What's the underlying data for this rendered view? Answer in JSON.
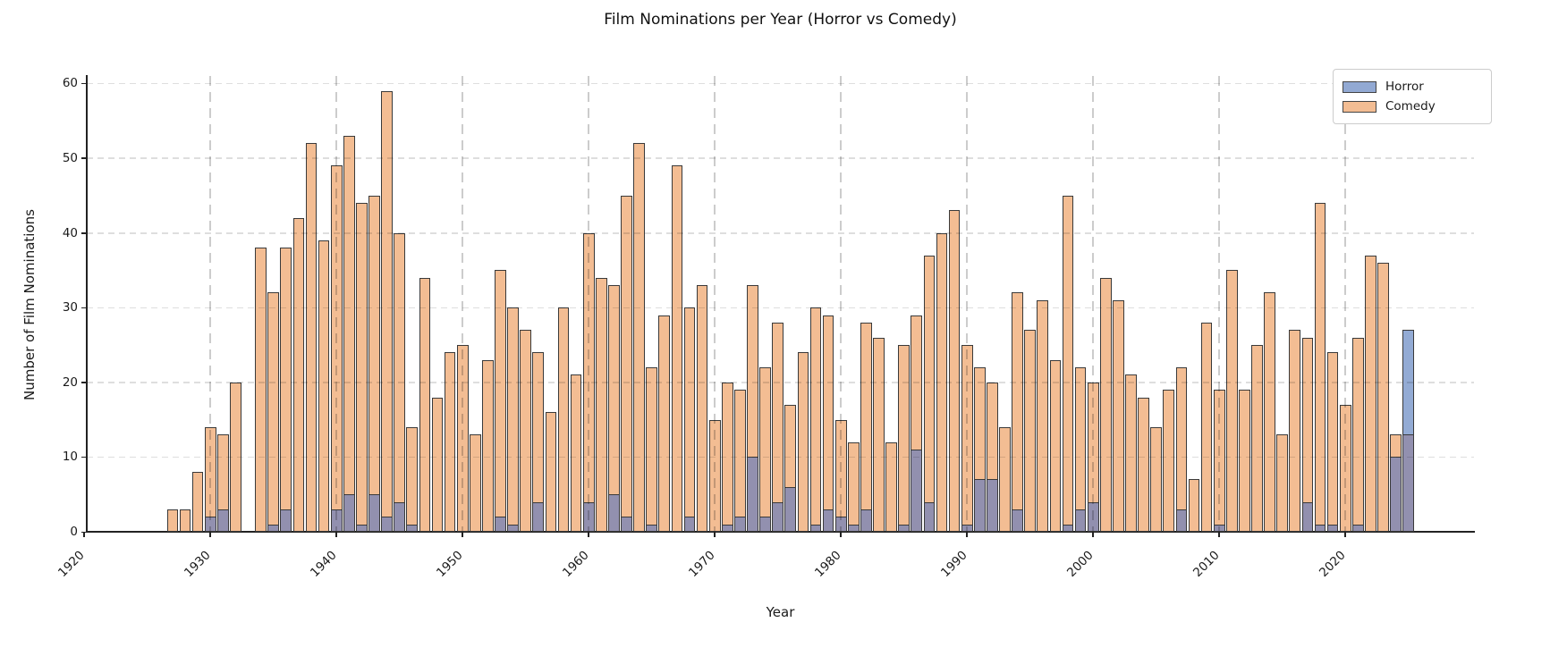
{
  "title": "Film Nominations per Year (Horror vs Comedy)",
  "legend": [
    {
      "label": "Horror",
      "color": "#92a9d3"
    },
    {
      "label": "Comedy",
      "color": "#f3bd93"
    }
  ],
  "colors": {
    "comedy": "#f3bd93",
    "horror_solo": "#93abd4",
    "horror_overlap": "#9290af",
    "edge": "#3a3a3a"
  },
  "chart_data": {
    "type": "bar",
    "title": "Film Nominations per Year (Horror vs Comedy)",
    "xlabel": "Year",
    "ylabel": "Number of Film Nominations",
    "legend_position": "upper right",
    "grid": true,
    "ylim": [
      0,
      61
    ],
    "xlim": [
      1920.2,
      2030.2
    ],
    "y_ticks": [
      0,
      10,
      20,
      30,
      40,
      50,
      60
    ],
    "x_ticks": [
      1920,
      1930,
      1940,
      1950,
      1960,
      1970,
      1980,
      1990,
      2000,
      2010,
      2020
    ],
    "years": [
      1927,
      1928,
      1929,
      1930,
      1931,
      1932,
      1933,
      1934,
      1935,
      1936,
      1937,
      1938,
      1939,
      1940,
      1941,
      1942,
      1943,
      1944,
      1945,
      1946,
      1947,
      1948,
      1949,
      1950,
      1951,
      1952,
      1953,
      1954,
      1955,
      1956,
      1957,
      1958,
      1959,
      1960,
      1961,
      1962,
      1963,
      1964,
      1965,
      1966,
      1967,
      1968,
      1969,
      1970,
      1971,
      1972,
      1973,
      1974,
      1975,
      1976,
      1977,
      1978,
      1979,
      1980,
      1981,
      1982,
      1983,
      1984,
      1985,
      1986,
      1987,
      1988,
      1989,
      1990,
      1991,
      1992,
      1993,
      1994,
      1995,
      1996,
      1997,
      1998,
      1999,
      2000,
      2001,
      2002,
      2003,
      2004,
      2005,
      2006,
      2007,
      2008,
      2009,
      2010,
      2011,
      2012,
      2013,
      2014,
      2015,
      2016,
      2017,
      2018,
      2019,
      2020,
      2021,
      2022,
      2023,
      2024,
      2025
    ],
    "series": [
      {
        "name": "Horror",
        "values": [
          0,
          0,
          0,
          2,
          3,
          0,
          0,
          0,
          1,
          3,
          0,
          0,
          0,
          3,
          5,
          1,
          5,
          2,
          4,
          1,
          0,
          0,
          0,
          0,
          0,
          0,
          2,
          1,
          0,
          4,
          0,
          0,
          0,
          4,
          0,
          5,
          2,
          0,
          1,
          0,
          0,
          2,
          0,
          0,
          1,
          2,
          10,
          2,
          4,
          6,
          0,
          1,
          3,
          2,
          1,
          3,
          0,
          0,
          1,
          11,
          4,
          0,
          0,
          1,
          7,
          7,
          0,
          3,
          0,
          0,
          0,
          1,
          3,
          4,
          0,
          0,
          0,
          0,
          0,
          0,
          3,
          0,
          0,
          1,
          0,
          0,
          0,
          0,
          0,
          0,
          4,
          1,
          1,
          0,
          1,
          0,
          0,
          10,
          27
        ]
      },
      {
        "name": "Comedy",
        "values": [
          3,
          3,
          8,
          14,
          13,
          20,
          0,
          38,
          32,
          38,
          42,
          52,
          39,
          49,
          53,
          44,
          45,
          59,
          40,
          14,
          34,
          18,
          24,
          25,
          13,
          23,
          35,
          30,
          27,
          24,
          16,
          30,
          21,
          40,
          34,
          33,
          45,
          52,
          22,
          29,
          49,
          30,
          33,
          15,
          20,
          19,
          33,
          22,
          28,
          17,
          24,
          30,
          29,
          15,
          12,
          28,
          26,
          12,
          25,
          29,
          37,
          40,
          43,
          25,
          22,
          20,
          14,
          32,
          27,
          31,
          23,
          45,
          22,
          20,
          34,
          31,
          21,
          18,
          14,
          19,
          22,
          7,
          28,
          19,
          35,
          19,
          25,
          32,
          13,
          27,
          26,
          44,
          24,
          17,
          26,
          37,
          36,
          13,
          13
        ]
      }
    ]
  }
}
